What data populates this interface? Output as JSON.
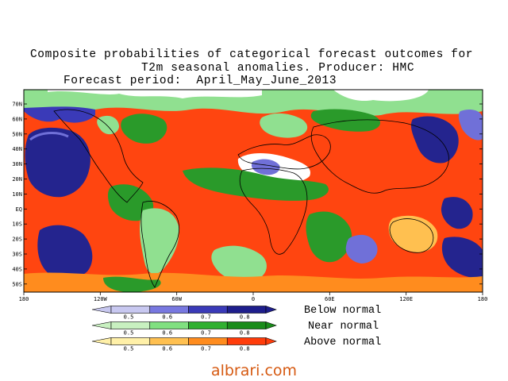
{
  "title": {
    "line1": "Composite probabilities of categorical forecast outcomes for",
    "line2": "T2m seasonal anomalies. Producer: HMC",
    "line3": "Forecast period:  April_May_June_2013"
  },
  "map": {
    "lat_labels": [
      "70N",
      "60N",
      "50N",
      "40N",
      "30N",
      "20N",
      "10N",
      "EQ",
      "10S",
      "20S",
      "30S",
      "40S",
      "50S"
    ],
    "lon_labels": [
      "180",
      "120W",
      "60W",
      "0",
      "60E",
      "120E",
      "180"
    ]
  },
  "legend": {
    "rows": [
      {
        "label": "Below normal",
        "values": [
          "0.5",
          "0.6",
          "0.7",
          "0.8"
        ],
        "colors": [
          "#c8c8f0",
          "#7878e0",
          "#3a3ab8",
          "#1e1e8c"
        ]
      },
      {
        "label": "Near normal",
        "values": [
          "0.5",
          "0.6",
          "0.7",
          "0.8"
        ],
        "colors": [
          "#c8f0c0",
          "#80e080",
          "#30b030",
          "#1a8c1a"
        ]
      },
      {
        "label": "Above normal",
        "values": [
          "0.5",
          "0.6",
          "0.7",
          "0.8"
        ],
        "colors": [
          "#fff0a8",
          "#ffc050",
          "#ff8c1e",
          "#ff3c0a"
        ]
      }
    ]
  },
  "map_colors": {
    "above_strong": "#ff4510",
    "above_mid": "#ff8c1e",
    "above_light": "#ffc050",
    "near_dark": "#2a9a2a",
    "near_light": "#90e090",
    "below_dark": "#24248e",
    "below_mid": "#7070d8",
    "below_light": "#c8c8f0",
    "white": "#ffffff"
  },
  "watermark": "albrari.com"
}
